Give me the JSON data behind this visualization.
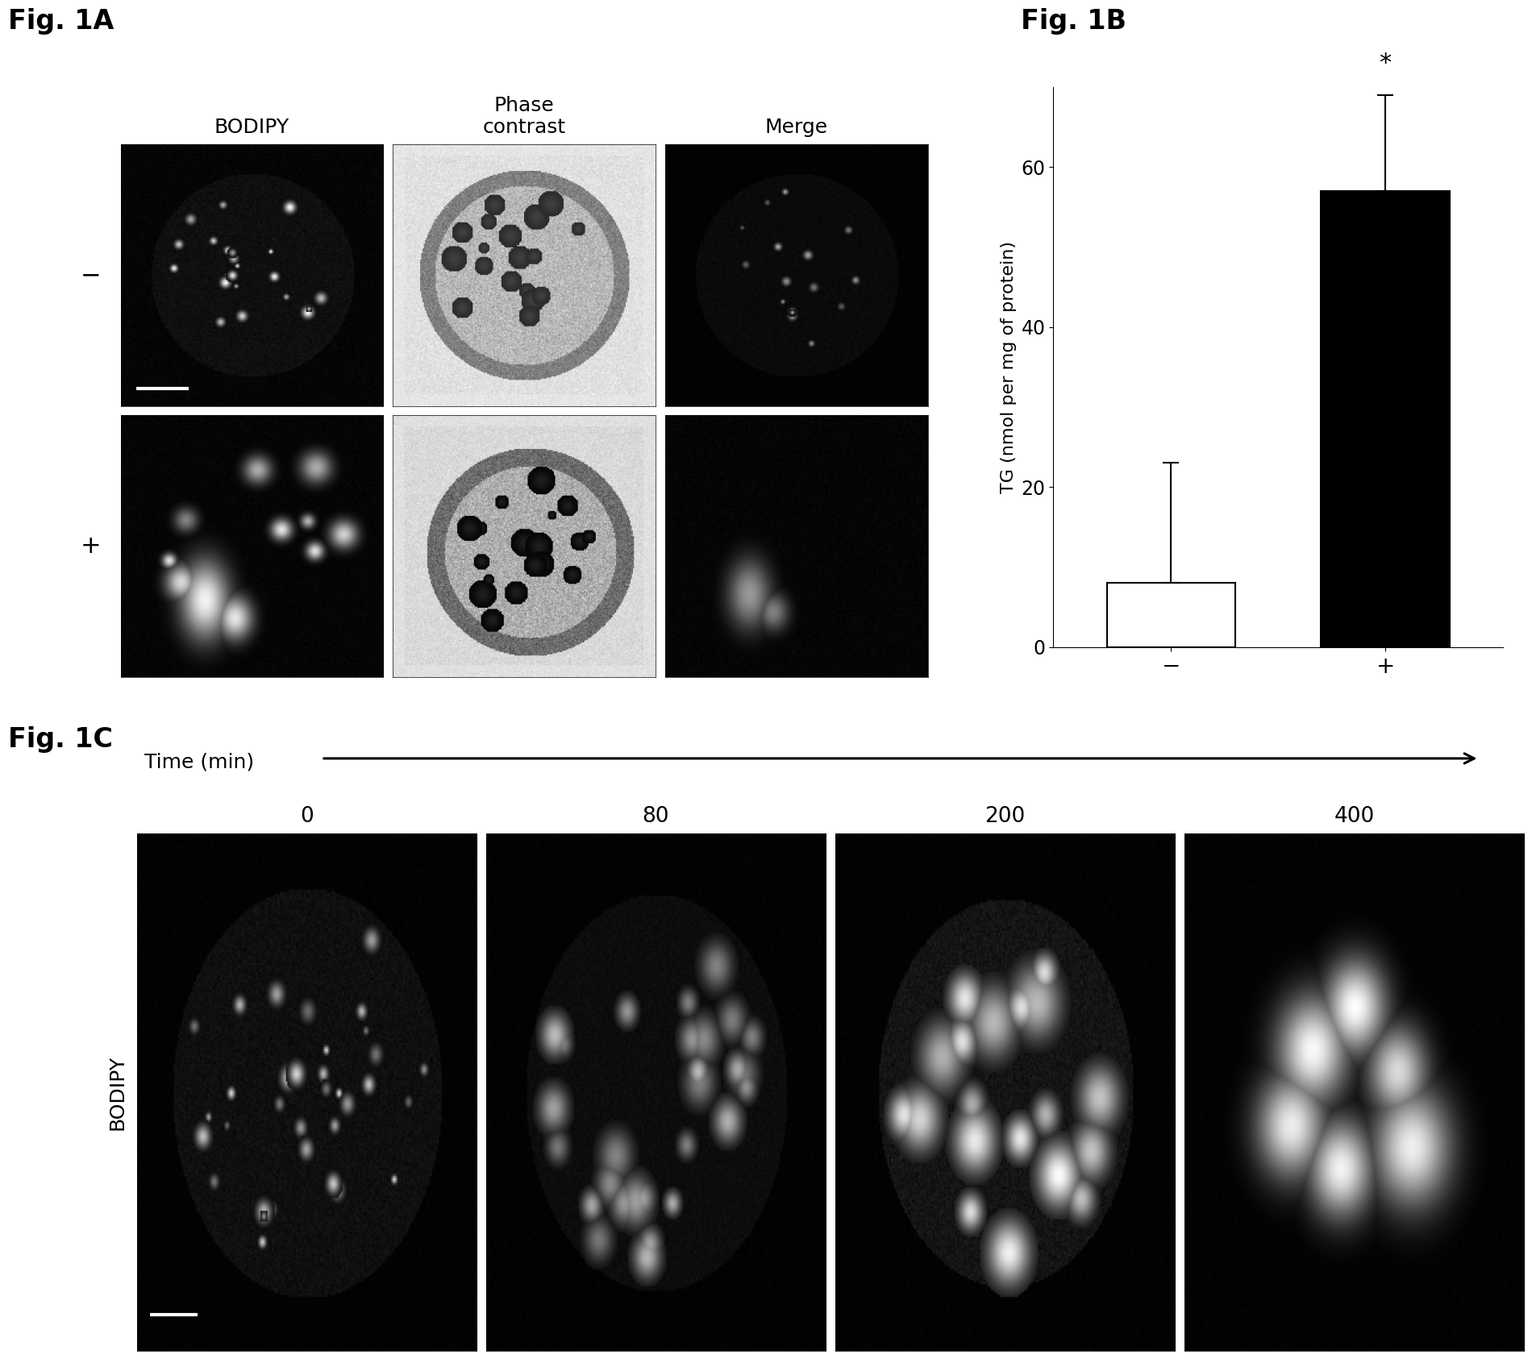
{
  "fig1b": {
    "categories": [
      "−",
      "+"
    ],
    "values": [
      8,
      57
    ],
    "errors_plus": [
      15,
      12
    ],
    "errors_minus": [
      0,
      0
    ],
    "bar_colors": [
      "white",
      "black"
    ],
    "bar_edge_colors": [
      "black",
      "black"
    ],
    "ylabel": "TG (nmol per mg of protein)",
    "ylim": [
      0,
      70
    ],
    "yticks": [
      0,
      20,
      40,
      60
    ],
    "asterisk_text": "*"
  },
  "fig1a_col_labels": [
    "BODIPY",
    "Phase\ncontrast",
    "Merge"
  ],
  "fig1a_row_labels": [
    "−",
    "+"
  ],
  "fig1c_time_points": [
    "0",
    "80",
    "200",
    "400"
  ],
  "fig1c_ylabel": "BODIPY",
  "fig1c_time_label": "Time (min)",
  "background_color": "#ffffff",
  "title_fontsize": 24,
  "col_label_fontsize": 18,
  "row_label_fontsize": 22,
  "tick_fontsize": 17,
  "bar_ylabel_fontsize": 16,
  "xtick_fontsize": 20,
  "time_label_fontsize": 18,
  "time_tick_fontsize": 19
}
